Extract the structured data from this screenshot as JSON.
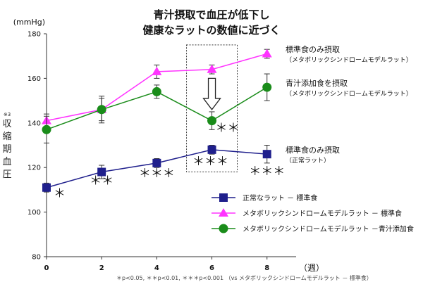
{
  "title_lines": [
    "青汁摂取で血圧が低下し",
    "健康なラットの数値に近づく"
  ],
  "chart_data": {
    "type": "line",
    "x": [
      0,
      2,
      4,
      6,
      8
    ],
    "xlim": [
      0,
      8.8
    ],
    "ylim": [
      80,
      180
    ],
    "yticks": [
      80,
      100,
      120,
      140,
      160,
      180
    ],
    "y_unit": "(mmHg)",
    "x_unit": "（週）",
    "ylabel": "収縮期血圧",
    "ylabel_note": "※3",
    "series": [
      {
        "name": "正常なラット － 標準食",
        "color": "#1f1f8c",
        "marker": "square",
        "values": [
          111,
          118,
          122,
          128,
          126
        ],
        "errors": [
          2,
          3,
          2,
          2,
          4
        ]
      },
      {
        "name": "メタボリックシンドロームモデルラット － 標準食",
        "color": "#ff33ff",
        "marker": "triangle",
        "values": [
          141,
          146,
          163,
          164,
          171
        ],
        "errors": [
          3,
          5,
          3,
          2,
          2
        ]
      },
      {
        "name": "メタボリックシンドロームモデルラット －青汁添加食",
        "color": "#1a8c1a",
        "marker": "circle",
        "values": [
          137,
          146,
          154,
          141,
          156
        ],
        "errors": [
          6,
          6,
          3,
          4,
          6
        ]
      }
    ],
    "significance": [
      {
        "series": 0,
        "index": 0,
        "label": "＊"
      },
      {
        "series": 0,
        "index": 1,
        "label": "＊＊"
      },
      {
        "series": 0,
        "index": 2,
        "label": "＊＊＊"
      },
      {
        "series": 0,
        "index": 3,
        "label": "＊＊＊"
      },
      {
        "series": 0,
        "index": 4,
        "label": "＊＊＊"
      },
      {
        "series": 2,
        "index": 3,
        "label": "＊＊"
      }
    ],
    "annotations": [
      {
        "main": "標準食のみ摂取",
        "sub": "（メタボリックシンドロームモデルラット）"
      },
      {
        "main": "青汁添加食を摂取",
        "sub": "（メタボリックシンドロームモデルラット）"
      },
      {
        "main": "標準食のみ摂取",
        "sub": "（正常ラット）"
      }
    ],
    "footnote": "＊p<0.05, ＊＊p<0.01, ＊＊＊p<0.001 （vs メタボリックシンドロームモデルラット － 標準食）",
    "grid": false,
    "legend_position": "bottom-right"
  }
}
